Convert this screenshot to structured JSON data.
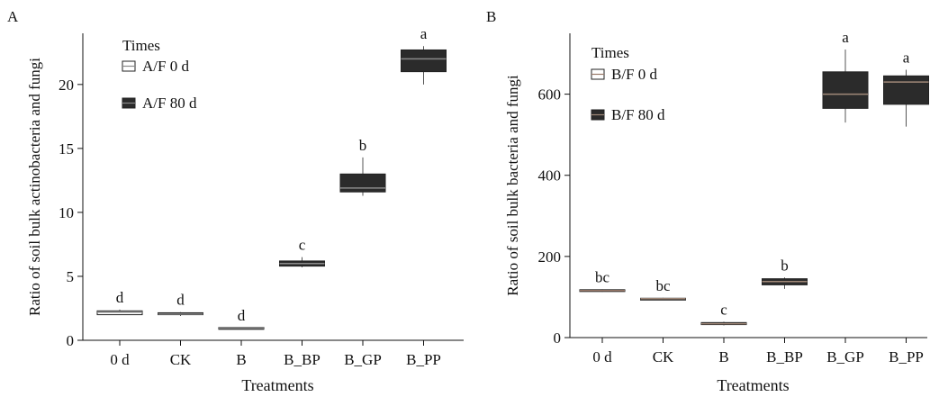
{
  "chart_data": [
    {
      "panel_label": "A",
      "type": "box",
      "xlabel": "Treatments",
      "ylabel": "Ratio of soil bulk actinobacteria and fungi",
      "ylim": [
        0,
        24
      ],
      "yticks": [
        0,
        5,
        10,
        15,
        20
      ],
      "legend_title": "Times",
      "legend_position": "top-left",
      "categories": [
        "0 d",
        "CK",
        "B",
        "B_BP",
        "B_GP",
        "B_PP"
      ],
      "series": [
        {
          "name": "A/F 0 d",
          "fill": "#ffffff",
          "median_color": "#888888"
        },
        {
          "name": "A/F 80 d",
          "fill": "#2b2b2b",
          "median_color": "#8a8a8a"
        }
      ],
      "boxes": [
        {
          "category": "0 d",
          "series": "A/F 0 d",
          "min": 2.0,
          "q1": 2.0,
          "median": 2.2,
          "q3": 2.3,
          "max": 2.4,
          "letter": "d"
        },
        {
          "category": "CK",
          "series": "A/F 80 d",
          "min": 1.9,
          "q1": 2.0,
          "median": 2.05,
          "q3": 2.15,
          "max": 2.2,
          "letter": "d"
        },
        {
          "category": "B",
          "series": "A/F 80 d",
          "min": 0.9,
          "q1": 0.9,
          "median": 0.95,
          "q3": 1.0,
          "max": 1.0,
          "letter": "d"
        },
        {
          "category": "B_BP",
          "series": "A/F 80 d",
          "min": 5.7,
          "q1": 5.8,
          "median": 6.0,
          "q3": 6.2,
          "max": 6.5,
          "letter": "c"
        },
        {
          "category": "B_GP",
          "series": "A/F 80 d",
          "min": 11.3,
          "q1": 11.6,
          "median": 11.9,
          "q3": 13.0,
          "max": 14.3,
          "letter": "b"
        },
        {
          "category": "B_PP",
          "series": "A/F 80 d",
          "min": 20.0,
          "q1": 21.0,
          "median": 22.0,
          "q3": 22.7,
          "max": 23.0,
          "letter": "a"
        }
      ]
    },
    {
      "panel_label": "B",
      "type": "box",
      "xlabel": "Treatments",
      "ylabel": "Ratio of soil bulk bacteria and fungi",
      "ylim": [
        0,
        750
      ],
      "yticks": [
        0,
        200,
        400,
        600
      ],
      "legend_title": "Times",
      "legend_position": "top-left",
      "categories": [
        "0 d",
        "CK",
        "B",
        "B_BP",
        "B_GP",
        "B_PP"
      ],
      "series": [
        {
          "name": "B/F 0 d",
          "fill": "#ffffff",
          "median_color": "#9a7a6a"
        },
        {
          "name": "B/F 80 d",
          "fill": "#2b2b2b",
          "median_color": "#a08878"
        }
      ],
      "boxes": [
        {
          "category": "0 d",
          "series": "B/F 0 d",
          "min": 113,
          "q1": 114,
          "median": 116,
          "q3": 118,
          "max": 119,
          "letter": "bc"
        },
        {
          "category": "CK",
          "series": "B/F 80 d",
          "min": 93,
          "q1": 94,
          "median": 96,
          "q3": 97,
          "max": 98,
          "letter": "bc"
        },
        {
          "category": "B",
          "series": "B/F 80 d",
          "min": 30,
          "q1": 32,
          "median": 34,
          "q3": 37,
          "max": 39,
          "letter": "c"
        },
        {
          "category": "B_BP",
          "series": "B/F 80 d",
          "min": 120,
          "q1": 130,
          "median": 138,
          "q3": 145,
          "max": 148,
          "letter": "b"
        },
        {
          "category": "B_GP",
          "series": "B/F 80 d",
          "min": 530,
          "q1": 565,
          "median": 600,
          "q3": 655,
          "max": 710,
          "letter": "a"
        },
        {
          "category": "B_PP",
          "series": "B/F 80 d",
          "min": 520,
          "q1": 575,
          "median": 630,
          "q3": 645,
          "max": 660,
          "letter": "a"
        }
      ]
    }
  ]
}
